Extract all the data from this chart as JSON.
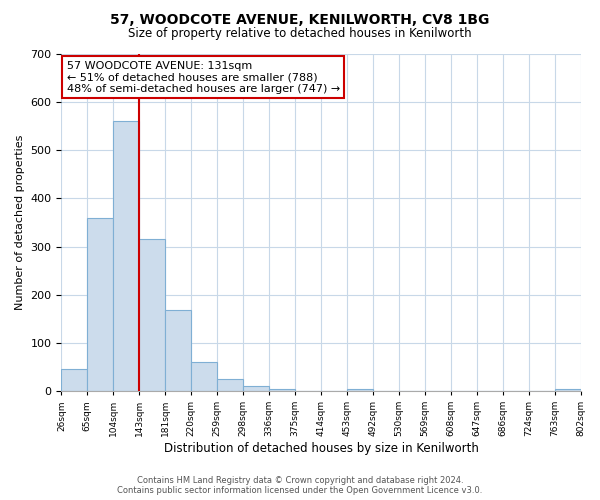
{
  "title": "57, WOODCOTE AVENUE, KENILWORTH, CV8 1BG",
  "subtitle": "Size of property relative to detached houses in Kenilworth",
  "bar_values": [
    45,
    360,
    560,
    315,
    168,
    60,
    25,
    10,
    5,
    0,
    0,
    5,
    0,
    0,
    0,
    0,
    0,
    0,
    0,
    5
  ],
  "categories": [
    "26sqm",
    "65sqm",
    "104sqm",
    "143sqm",
    "181sqm",
    "220sqm",
    "259sqm",
    "298sqm",
    "336sqm",
    "375sqm",
    "414sqm",
    "453sqm",
    "492sqm",
    "530sqm",
    "569sqm",
    "608sqm",
    "647sqm",
    "686sqm",
    "724sqm",
    "763sqm",
    "802sqm"
  ],
  "bar_color": "#ccdcec",
  "bar_edge_color": "#7fafd4",
  "vline_color": "#cc0000",
  "ylim": [
    0,
    700
  ],
  "yticks": [
    0,
    100,
    200,
    300,
    400,
    500,
    600,
    700
  ],
  "ylabel": "Number of detached properties",
  "xlabel": "Distribution of detached houses by size in Kenilworth",
  "annotation_title": "57 WOODCOTE AVENUE: 131sqm",
  "annotation_line1": "← 51% of detached houses are smaller (788)",
  "annotation_line2": "48% of semi-detached houses are larger (747) →",
  "annotation_box_color": "#ffffff",
  "annotation_box_edge": "#cc0000",
  "footer_line1": "Contains HM Land Registry data © Crown copyright and database right 2024.",
  "footer_line2": "Contains public sector information licensed under the Open Government Licence v3.0.",
  "background_color": "#ffffff",
  "grid_color": "#c8d8e8"
}
